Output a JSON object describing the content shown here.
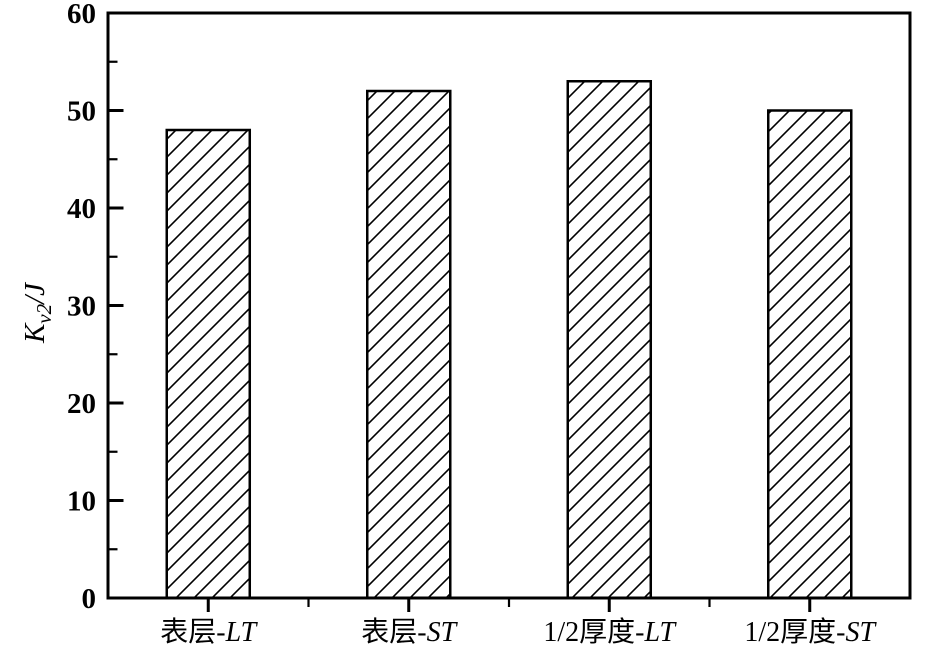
{
  "chart_data": {
    "type": "bar",
    "title": "",
    "xlabel": "",
    "ylabel": {
      "text": "Kv2/J",
      "base": "K",
      "sub": "v2",
      "suffix": "/J"
    },
    "ylim": [
      0,
      60
    ],
    "yticks": [
      0,
      10,
      20,
      30,
      40,
      50,
      60
    ],
    "ytick_step": 10,
    "ytick_minor_step": 5,
    "categories_text": [
      "表层-LT",
      "表层-ST",
      "1/2厚度-LT",
      "1/2厚度-ST"
    ],
    "categories": [
      [
        {
          "t": "表层-",
          "i": false
        },
        {
          "t": "LT",
          "i": true
        }
      ],
      [
        {
          "t": "表层-",
          "i": false
        },
        {
          "t": "ST",
          "i": true
        }
      ],
      [
        {
          "t": "1/2厚度-",
          "i": false
        },
        {
          "t": "LT",
          "i": true
        }
      ],
      [
        {
          "t": "1/2厚度-",
          "i": false
        },
        {
          "t": "ST",
          "i": true
        }
      ]
    ],
    "values": [
      48,
      52,
      53,
      50
    ],
    "bar_style": "diagonal-hatch",
    "hatch_angle_deg": 45,
    "bar_width_fraction": 0.414,
    "grid": false,
    "legend": "none",
    "colors": {
      "background": "#ffffff",
      "axis": "#000000",
      "hatch": "#000000",
      "bar_fill": "#ffffff",
      "text": "#000000"
    }
  }
}
